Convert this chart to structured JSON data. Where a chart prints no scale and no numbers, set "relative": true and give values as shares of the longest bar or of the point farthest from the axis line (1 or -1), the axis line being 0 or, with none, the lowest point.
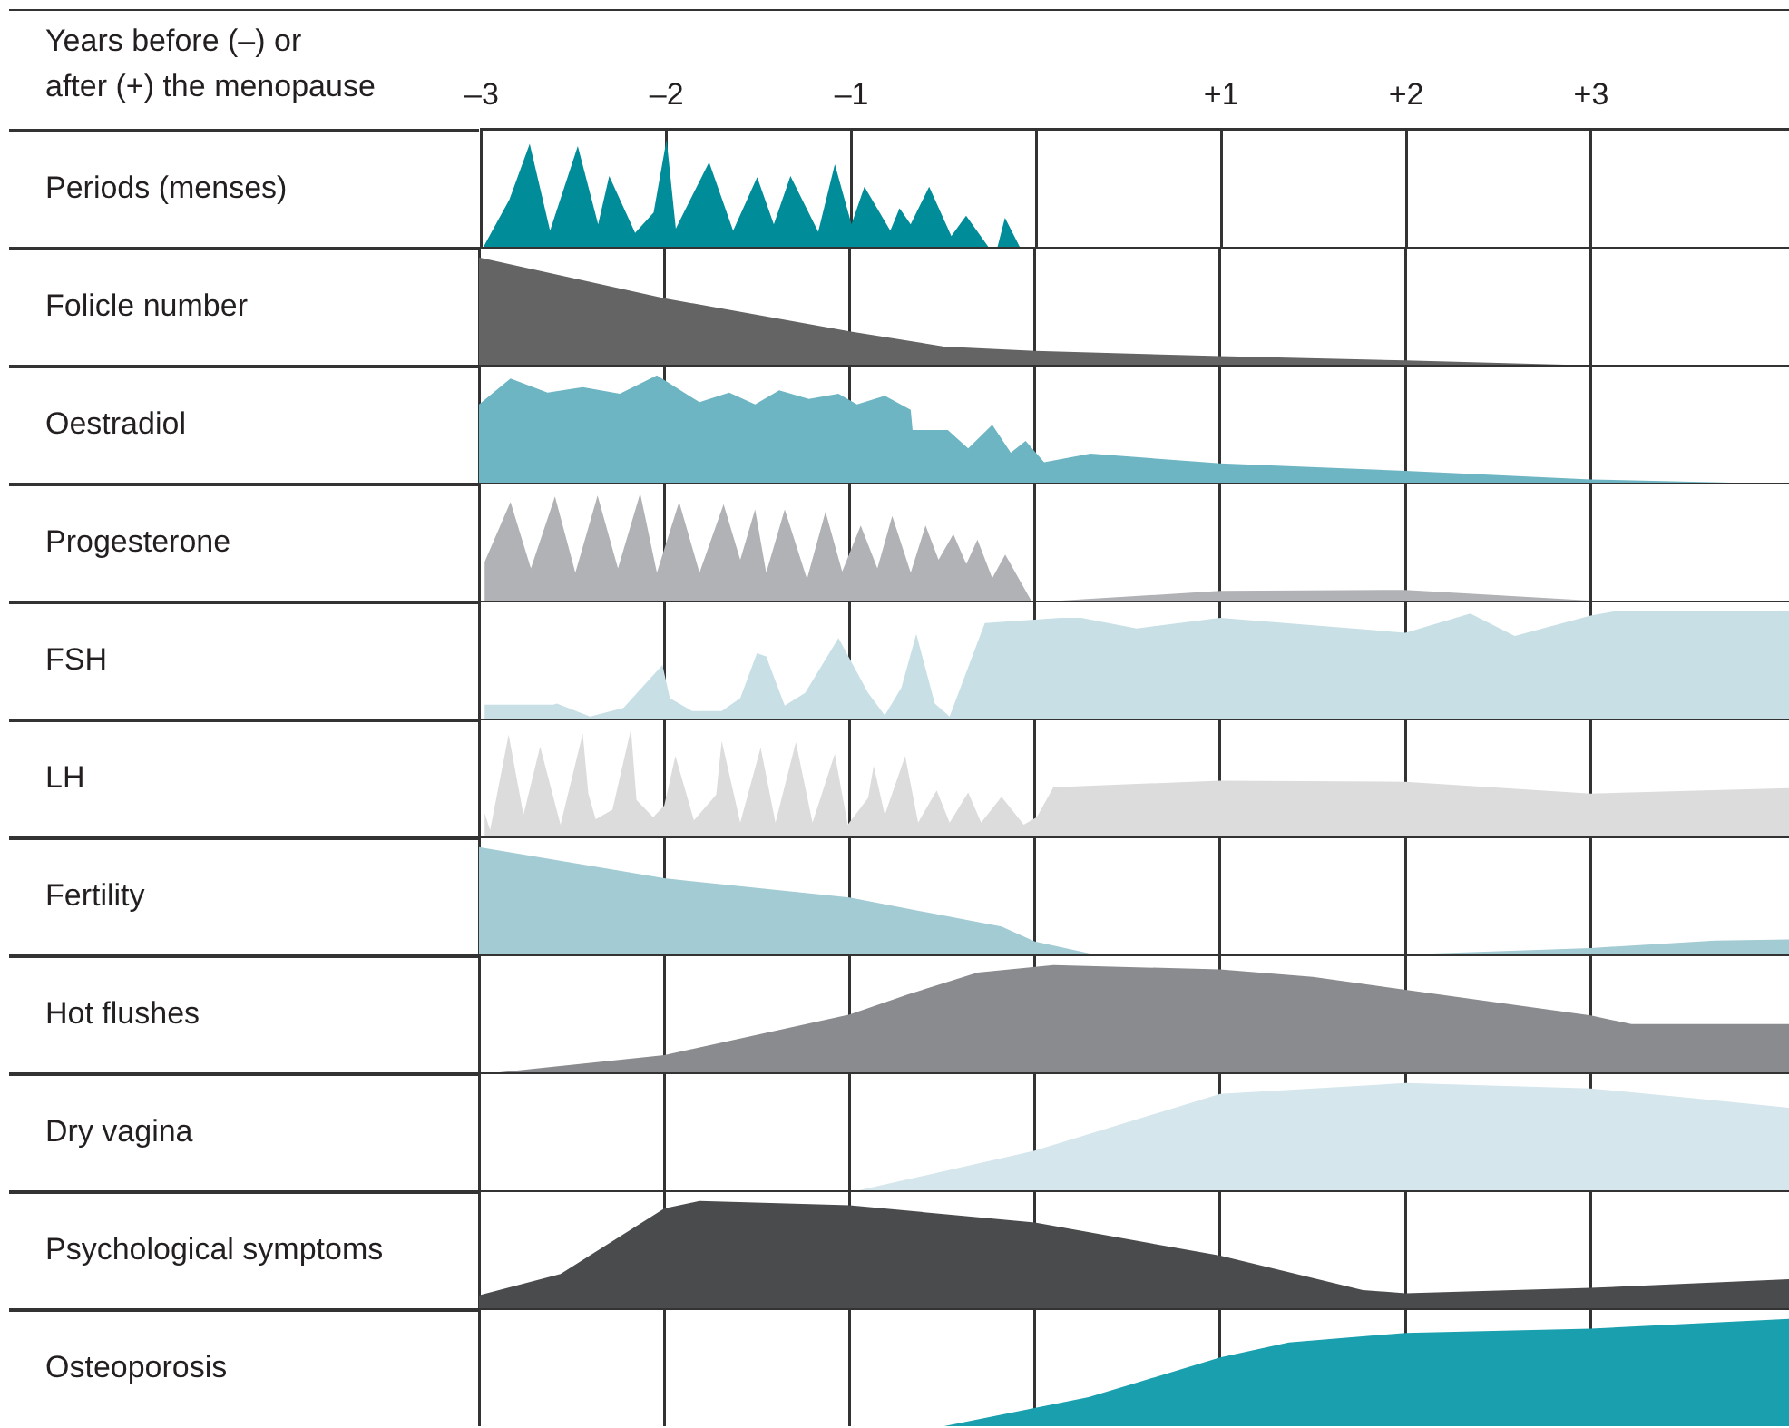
{
  "chart_data": [
    {
      "type": "area",
      "xlabel": "Years before (–) or after (+) the menopause",
      "ylabel": "Periods (menses)",
      "relative": true,
      "color": "#008c99",
      "grid": "x",
      "tick_labels": "x",
      "xlim": [
        -3,
        4.07
      ],
      "xticks": [
        {
          "value": -3,
          "label": "–3"
        },
        {
          "value": -2,
          "label": "–2"
        },
        {
          "value": -1,
          "label": "–1"
        },
        {
          "value": 0,
          "label": null
        },
        {
          "value": 1,
          "label": "+1"
        },
        {
          "value": 2,
          "label": "+2"
        },
        {
          "value": 3,
          "label": "+3"
        }
      ],
      "x": [
        -2.99,
        -2.85,
        -2.74,
        -2.63,
        -2.48,
        -2.37,
        -2.31,
        -2.17,
        -2.07,
        -2.0,
        -1.95,
        -1.77,
        -1.64,
        -1.51,
        -1.42,
        -1.33,
        -1.18,
        -1.09,
        -1.0,
        -0.93,
        -0.79,
        -0.74,
        -0.68,
        -0.58,
        -0.46,
        -0.38,
        -0.26,
        -0.21,
        -0.17,
        -0.09
      ],
      "values": [
        0,
        0.44,
        0.96,
        0.15,
        0.94,
        0.21,
        0.66,
        0.13,
        0.32,
        1,
        0.17,
        0.79,
        0.15,
        0.65,
        0.21,
        0.66,
        0.14,
        0.77,
        0.21,
        0.56,
        0.15,
        0.36,
        0.21,
        0.56,
        0.1,
        0.29,
        0,
        0,
        0.27,
        0
      ]
    },
    {
      "type": "area",
      "ylabel": "Folicle number",
      "relative": true,
      "color": "#646464",
      "grid": "x",
      "tick_labels": false,
      "xlim": [
        -3,
        4.07
      ],
      "xticks": [
        -3,
        -2,
        -1,
        0,
        1,
        2,
        3
      ],
      "x": [
        -3,
        -2,
        -1,
        -0.49,
        0,
        1,
        2,
        2.86
      ],
      "values": [
        1,
        0.62,
        0.31,
        0.17,
        0.13,
        0.08,
        0.04,
        0
      ]
    },
    {
      "type": "area",
      "ylabel": "Oestradiol",
      "relative": true,
      "color": "#6db5c3",
      "grid": "x",
      "tick_labels": false,
      "xlim": [
        -3,
        4.07
      ],
      "xticks": [
        -3,
        -2,
        -1,
        0,
        1,
        2,
        3
      ],
      "x": [
        -3,
        -2.83,
        -2.63,
        -2.44,
        -2.24,
        -2.04,
        -1.81,
        -1.65,
        -1.51,
        -1.38,
        -1.22,
        -1.06,
        -0.96,
        -0.81,
        -0.67,
        -0.66,
        -0.47,
        -0.36,
        -0.23,
        -0.13,
        -0.05,
        0.05,
        0.3,
        1,
        2,
        3,
        3.76
      ],
      "values": [
        0.73,
        0.97,
        0.84,
        0.89,
        0.83,
        1,
        0.75,
        0.84,
        0.73,
        0.86,
        0.78,
        0.83,
        0.73,
        0.81,
        0.68,
        0.49,
        0.49,
        0.32,
        0.54,
        0.28,
        0.39,
        0.19,
        0.27,
        0.18,
        0.11,
        0.03,
        0
      ]
    },
    {
      "type": "area",
      "ylabel": "Progesterone",
      "relative": true,
      "color": "#b1b2b5",
      "grid": "x",
      "tick_labels": false,
      "xlim": [
        -3,
        4.07
      ],
      "xticks": [
        -3,
        -2,
        -1,
        0,
        1,
        2,
        3
      ],
      "x": [
        -2.97,
        -2.83,
        -2.72,
        -2.59,
        -2.48,
        -2.36,
        -2.25,
        -2.13,
        -2.04,
        -1.92,
        -1.81,
        -1.68,
        -1.59,
        -1.51,
        -1.45,
        -1.35,
        -1.23,
        -1.13,
        -1.04,
        -0.94,
        -0.85,
        -0.77,
        -0.67,
        -0.59,
        -0.52,
        -0.44,
        -0.37,
        -0.31,
        -0.23,
        -0.16,
        -0.02,
        0.14,
        1,
        2,
        3
      ],
      "values": [
        0.36,
        0.92,
        0.3,
        0.97,
        0.26,
        0.98,
        0.3,
        1,
        0.26,
        0.92,
        0.26,
        0.9,
        0.38,
        0.85,
        0.26,
        0.85,
        0.2,
        0.83,
        0.27,
        0.7,
        0.3,
        0.79,
        0.26,
        0.7,
        0.38,
        0.62,
        0.34,
        0.57,
        0.21,
        0.43,
        0,
        0,
        0.09,
        0.1,
        0
      ]
    },
    {
      "type": "area",
      "ylabel": "FSH",
      "relative": true,
      "color": "#c8e0e5",
      "grid": "x",
      "tick_labels": false,
      "xlim": [
        -3,
        4.07
      ],
      "xticks": [
        -3,
        -2,
        -1,
        0,
        1,
        2,
        3
      ],
      "x": [
        -2.97,
        -2.6,
        -2.58,
        -2.4,
        -2.22,
        -2.01,
        -1.97,
        -1.85,
        -1.69,
        -1.59,
        -1.5,
        -1.45,
        -1.35,
        -1.24,
        -1.06,
        -0.9,
        -0.81,
        -0.72,
        -0.64,
        -0.54,
        -0.46,
        -0.27,
        0.14,
        0.25,
        0.55,
        1,
        2,
        2.35,
        2.59,
        3,
        3.13,
        4.07
      ],
      "values": [
        0.13,
        0.13,
        0.14,
        0.02,
        0.1,
        0.5,
        0.19,
        0.07,
        0.07,
        0.19,
        0.61,
        0.58,
        0.12,
        0.24,
        0.75,
        0.24,
        0.03,
        0.29,
        0.79,
        0.14,
        0.02,
        0.89,
        0.94,
        0.94,
        0.84,
        0.94,
        0.8,
        0.98,
        0.77,
        0.96,
        1,
        1
      ]
    },
    {
      "type": "area",
      "ylabel": "LH",
      "relative": true,
      "color": "#dcdcdd",
      "grid": "x",
      "tick_labels": false,
      "xlim": [
        -3,
        4.07
      ],
      "xticks": [
        -3,
        -2,
        -1,
        0,
        1,
        2,
        3
      ],
      "x": [
        -2.97,
        -2.94,
        -2.84,
        -2.76,
        -2.67,
        -2.56,
        -2.44,
        -2.41,
        -2.37,
        -2.28,
        -2.18,
        -2.15,
        -2.06,
        -2.0,
        -1.94,
        -1.84,
        -1.72,
        -1.69,
        -1.59,
        -1.48,
        -1.4,
        -1.29,
        -1.2,
        -1.08,
        -1.01,
        -0.9,
        -0.87,
        -0.81,
        -0.7,
        -0.63,
        -0.53,
        -0.46,
        -0.36,
        -0.29,
        -0.18,
        -0.06,
        0.01,
        0.1,
        1,
        2,
        3,
        4.07
      ],
      "values": [
        0.22,
        0.06,
        0.95,
        0.2,
        0.84,
        0.11,
        0.96,
        0.4,
        0.16,
        0.25,
        1,
        0.34,
        0.18,
        0.29,
        0.75,
        0.15,
        0.39,
        0.89,
        0.13,
        0.83,
        0.13,
        0.88,
        0.13,
        0.77,
        0.11,
        0.36,
        0.66,
        0.2,
        0.75,
        0.13,
        0.43,
        0.13,
        0.41,
        0.13,
        0.37,
        0.11,
        0.18,
        0.46,
        0.52,
        0.51,
        0.4,
        0.45
      ]
    },
    {
      "type": "area",
      "ylabel": "Fertility",
      "relative": true,
      "color": "#a2cbd4",
      "grid": "x",
      "tick_labels": false,
      "xlim": [
        -3,
        4.07
      ],
      "xticks": [
        -3,
        -2,
        -1,
        0,
        1,
        2,
        3
      ],
      "x": [
        -3,
        -2,
        -1,
        -0.18,
        0,
        0.32,
        2,
        3,
        3.67,
        4.07
      ],
      "values": [
        1,
        0.71,
        0.53,
        0.26,
        0.12,
        0,
        0,
        0.06,
        0.13,
        0.14
      ]
    },
    {
      "type": "area",
      "ylabel": "Hot flushes",
      "relative": true,
      "color": "#8a8b8e",
      "grid": "x",
      "tick_labels": false,
      "xlim": [
        -3,
        4.07
      ],
      "xticks": [
        -3,
        -2,
        -1,
        0,
        1,
        2,
        3
      ],
      "x": [
        -2.89,
        -2,
        -1,
        -0.68,
        -0.31,
        0.1,
        1,
        1.5,
        2,
        3,
        3.22,
        4.07
      ],
      "values": [
        0,
        0.16,
        0.54,
        0.73,
        0.93,
        1,
        0.96,
        0.89,
        0.77,
        0.53,
        0.45,
        0.45
      ]
    },
    {
      "type": "area",
      "ylabel": "Dry vagina",
      "relative": true,
      "color": "#d5e6ec",
      "grid": "x",
      "tick_labels": false,
      "xlim": [
        -3,
        4.07
      ],
      "xticks": [
        -3,
        -2,
        -1,
        0,
        1,
        2,
        3
      ],
      "x": [
        -0.95,
        0,
        1,
        2,
        3,
        3.54,
        4.07
      ],
      "values": [
        0,
        0.37,
        0.9,
        1,
        0.95,
        0.86,
        0.77
      ]
    },
    {
      "type": "area",
      "ylabel": "Psychological symptoms",
      "relative": true,
      "color": "#4a4b4d",
      "grid": "x",
      "tick_labels": false,
      "xlim": [
        -3,
        4.07
      ],
      "xticks": [
        -3,
        -2,
        -1,
        0,
        1,
        2,
        3
      ],
      "x": [
        -3,
        -2.56,
        -2,
        -1.81,
        -1,
        0,
        1,
        1.77,
        2,
        3,
        4.07
      ],
      "values": [
        0.12,
        0.32,
        0.93,
        1,
        0.96,
        0.8,
        0.49,
        0.17,
        0.14,
        0.19,
        0.27
      ]
    },
    {
      "type": "area",
      "ylabel": "Osteoporosis",
      "relative": true,
      "color": "#1a9fae",
      "grid": "x",
      "tick_labels": false,
      "xlim": [
        -3,
        4.07
      ],
      "xticks": [
        -3,
        -2,
        -1,
        0,
        1,
        2,
        3
      ],
      "x": [
        -0.49,
        0.29,
        1,
        1.37,
        2,
        3,
        4.07
      ],
      "values": [
        0,
        0.27,
        0.64,
        0.78,
        0.87,
        0.91,
        1
      ]
    }
  ]
}
